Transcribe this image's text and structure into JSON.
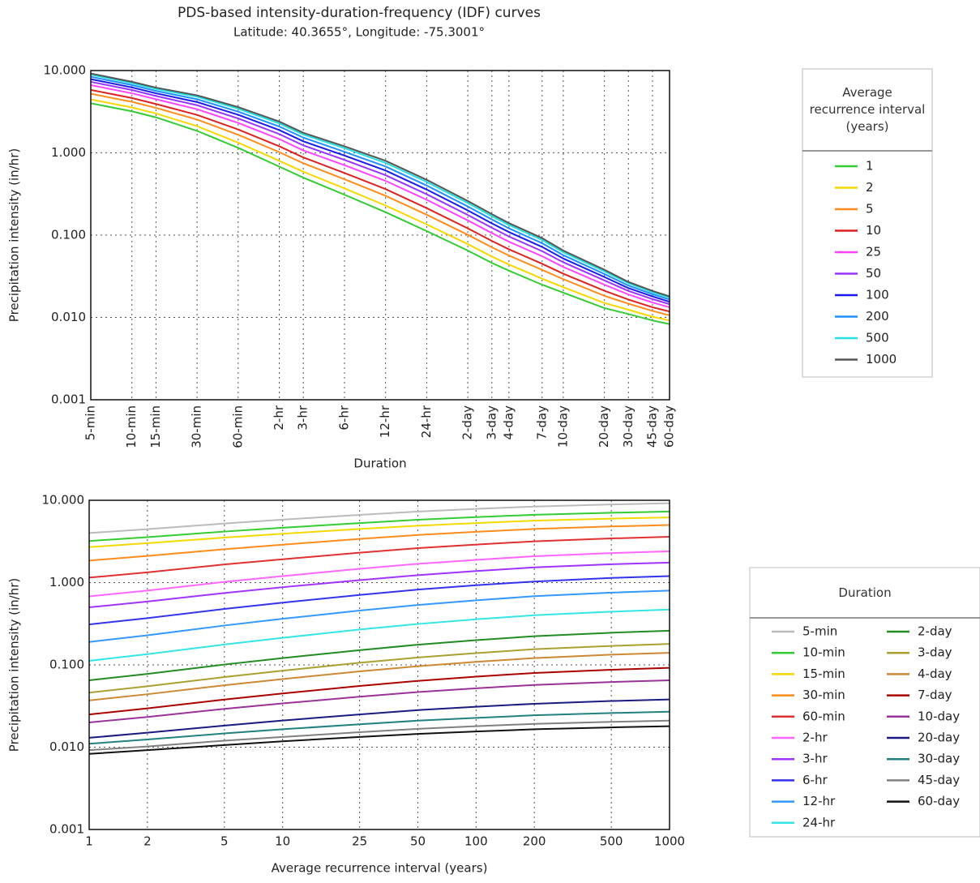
{
  "title": "PDS-based intensity-duration-frequency (IDF) curves",
  "subtitle": "Latitude: 40.3655°, Longitude: -75.3001°",
  "chart_data": [
    {
      "type": "line",
      "xscale": "log",
      "yscale": "log",
      "grid": true,
      "legend": "right",
      "legend_columns": 1,
      "xlabel": "Duration",
      "ylabel": "Precipitation intensity (in/hr)",
      "legend_title": "Average recurrence interval (years)",
      "x": [
        5,
        10,
        15,
        30,
        60,
        120,
        180,
        360,
        720,
        1440,
        2880,
        4320,
        5760,
        10080,
        14400,
        28800,
        43200,
        64800,
        86400
      ],
      "xlim": [
        5,
        86400
      ],
      "xticks": [
        {
          "value": 5,
          "label": "5-min"
        },
        {
          "value": 10,
          "label": "10-min"
        },
        {
          "value": 15,
          "label": "15-min"
        },
        {
          "value": 30,
          "label": "30-min"
        },
        {
          "value": 60,
          "label": "60-min"
        },
        {
          "value": 120,
          "label": "2-hr"
        },
        {
          "value": 180,
          "label": "3-hr"
        },
        {
          "value": 360,
          "label": "6-hr"
        },
        {
          "value": 720,
          "label": "12-hr"
        },
        {
          "value": 1440,
          "label": "24-hr"
        },
        {
          "value": 2880,
          "label": "2-day"
        },
        {
          "value": 4320,
          "label": "3-day"
        },
        {
          "value": 5760,
          "label": "4-day"
        },
        {
          "value": 10080,
          "label": "7-day"
        },
        {
          "value": 14400,
          "label": "10-day"
        },
        {
          "value": 28800,
          "label": "20-day"
        },
        {
          "value": 43200,
          "label": "30-day"
        },
        {
          "value": 64800,
          "label": "45-day"
        },
        {
          "value": 86400,
          "label": "60-day"
        }
      ],
      "ylim": [
        0.001,
        10
      ],
      "yticks": [
        {
          "value": 0.001,
          "label": "0.001"
        },
        {
          "value": 0.01,
          "label": "0.010"
        },
        {
          "value": 0.1,
          "label": "0.100"
        },
        {
          "value": 1,
          "label": "1.000"
        },
        {
          "value": 10,
          "label": "10.000"
        }
      ],
      "series": [
        {
          "name": "1",
          "color": "#33cc33",
          "values": [
            4.0,
            3.2,
            2.7,
            1.85,
            1.15,
            0.68,
            0.5,
            0.31,
            0.19,
            0.112,
            0.065,
            0.046,
            0.037,
            0.025,
            0.02,
            0.013,
            0.011,
            0.0092,
            0.0083
          ]
        },
        {
          "name": "2",
          "color": "#f5d800",
          "values": [
            4.46,
            3.56,
            3.01,
            2.11,
            1.33,
            0.8,
            0.589,
            0.37,
            0.229,
            0.135,
            0.0778,
            0.0549,
            0.044,
            0.0296,
            0.0233,
            0.015,
            0.0124,
            0.0102,
            0.0092
          ]
        },
        {
          "name": "5",
          "color": "#ff8c1a",
          "values": [
            5.22,
            4.17,
            3.52,
            2.54,
            1.66,
            1.02,
            0.747,
            0.478,
            0.301,
            0.177,
            0.101,
            0.0712,
            0.0566,
            0.0379,
            0.0292,
            0.0183,
            0.0147,
            0.012,
            0.0106
          ]
        },
        {
          "name": "10",
          "color": "#dd2222",
          "values": [
            5.82,
            4.64,
            3.92,
            2.89,
            1.92,
            1.2,
            0.879,
            0.57,
            0.363,
            0.213,
            0.121,
            0.085,
            0.0673,
            0.0449,
            0.034,
            0.0211,
            0.0165,
            0.0133,
            0.0118
          ]
        },
        {
          "name": "25",
          "color": "#ff44ff",
          "values": [
            6.65,
            5.29,
            4.48,
            3.39,
            2.31,
            1.47,
            1.07,
            0.708,
            0.457,
            0.269,
            0.151,
            0.106,
            0.0833,
            0.0554,
            0.0411,
            0.025,
            0.019,
            0.0152,
            0.0133
          ]
        },
        {
          "name": "50",
          "color": "#9933ff",
          "values": [
            7.29,
            5.8,
            4.91,
            3.79,
            2.62,
            1.69,
            1.23,
            0.822,
            0.535,
            0.314,
            0.176,
            0.123,
            0.0964,
            0.0639,
            0.0468,
            0.0282,
            0.021,
            0.0167,
            0.0145
          ]
        },
        {
          "name": "100",
          "color": "#1a1aee",
          "values": [
            7.86,
            6.24,
            5.29,
            4.14,
            2.9,
            1.89,
            1.38,
            0.928,
            0.609,
            0.358,
            0.2,
            0.139,
            0.109,
            0.0719,
            0.052,
            0.031,
            0.0227,
            0.018,
            0.0155
          ]
        },
        {
          "name": "200",
          "color": "#1e90ff",
          "values": [
            8.4,
            6.67,
            5.66,
            4.48,
            3.17,
            2.09,
            1.53,
            1.03,
            0.683,
            0.401,
            0.223,
            0.155,
            0.121,
            0.0798,
            0.0571,
            0.0337,
            0.0244,
            0.0192,
            0.0165
          ]
        },
        {
          "name": "500",
          "color": "#22e0e0",
          "values": [
            8.9,
            7.06,
            5.99,
            4.81,
            3.44,
            2.28,
            1.67,
            1.14,
            0.755,
            0.443,
            0.246,
            0.17,
            0.133,
            0.0873,
            0.062,
            0.0364,
            0.026,
            0.0203,
            0.0174
          ]
        },
        {
          "name": "1000",
          "color": "#555555",
          "values": [
            9.2,
            7.3,
            6.2,
            5.0,
            3.6,
            2.4,
            1.75,
            1.2,
            0.8,
            0.47,
            0.26,
            0.18,
            0.14,
            0.092,
            0.065,
            0.038,
            0.027,
            0.021,
            0.018
          ]
        }
      ]
    },
    {
      "type": "line",
      "xscale": "log",
      "yscale": "log",
      "grid": true,
      "legend": "right",
      "legend_columns": 2,
      "xlabel": "Average recurrence interval (years)",
      "ylabel": "Precipitation intensity (in/hr)",
      "legend_title": "Duration",
      "x": [
        1,
        2,
        5,
        10,
        25,
        50,
        100,
        200,
        500,
        1000
      ],
      "xlim": [
        1,
        1000
      ],
      "xticks": [
        1,
        2,
        5,
        10,
        25,
        50,
        100,
        200,
        500,
        1000
      ],
      "ylim": [
        0.001,
        10
      ],
      "yticks": [
        {
          "value": 0.001,
          "label": "0.001"
        },
        {
          "value": 0.01,
          "label": "0.010"
        },
        {
          "value": 0.1,
          "label": "0.100"
        },
        {
          "value": 1,
          "label": "1.000"
        },
        {
          "value": 10,
          "label": "10.000"
        }
      ],
      "series": [
        {
          "name": "5-min",
          "color": "#bbbbbb",
          "values": [
            4.0,
            4.46,
            5.22,
            5.82,
            6.65,
            7.29,
            7.86,
            8.4,
            8.9,
            9.2
          ]
        },
        {
          "name": "10-min",
          "color": "#33cc33",
          "values": [
            3.2,
            3.56,
            4.17,
            4.64,
            5.29,
            5.8,
            6.24,
            6.67,
            7.06,
            7.3
          ]
        },
        {
          "name": "15-min",
          "color": "#f5d800",
          "values": [
            2.7,
            3.01,
            3.52,
            3.92,
            4.48,
            4.91,
            5.29,
            5.66,
            5.99,
            6.2
          ]
        },
        {
          "name": "30-min",
          "color": "#ff8c1a",
          "values": [
            1.85,
            2.11,
            2.54,
            2.89,
            3.39,
            3.79,
            4.14,
            4.48,
            4.81,
            5.0
          ]
        },
        {
          "name": "60-min",
          "color": "#e03030",
          "values": [
            1.15,
            1.33,
            1.66,
            1.92,
            2.31,
            2.62,
            2.9,
            3.17,
            3.44,
            3.6
          ]
        },
        {
          "name": "2-hr",
          "color": "#ff66ff",
          "values": [
            0.68,
            0.8,
            1.02,
            1.2,
            1.47,
            1.69,
            1.89,
            2.09,
            2.28,
            2.4
          ]
        },
        {
          "name": "3-hr",
          "color": "#a033ff",
          "values": [
            0.5,
            0.589,
            0.747,
            0.879,
            1.07,
            1.23,
            1.38,
            1.53,
            1.67,
            1.75
          ]
        },
        {
          "name": "6-hr",
          "color": "#3333ee",
          "values": [
            0.31,
            0.37,
            0.478,
            0.57,
            0.708,
            0.822,
            0.928,
            1.03,
            1.14,
            1.2
          ]
        },
        {
          "name": "12-hr",
          "color": "#3399ff",
          "values": [
            0.19,
            0.229,
            0.301,
            0.363,
            0.457,
            0.535,
            0.609,
            0.683,
            0.755,
            0.8
          ]
        },
        {
          "name": "24-hr",
          "color": "#33e5e5",
          "values": [
            0.112,
            0.135,
            0.177,
            0.213,
            0.269,
            0.314,
            0.358,
            0.401,
            0.443,
            0.47
          ]
        },
        {
          "name": "2-day",
          "color": "#228b22",
          "values": [
            0.065,
            0.0778,
            0.101,
            0.121,
            0.151,
            0.176,
            0.2,
            0.223,
            0.246,
            0.26
          ]
        },
        {
          "name": "3-day",
          "color": "#aaa030",
          "values": [
            0.046,
            0.0549,
            0.0712,
            0.085,
            0.106,
            0.123,
            0.139,
            0.155,
            0.17,
            0.18
          ]
        },
        {
          "name": "4-day",
          "color": "#cc8833",
          "values": [
            0.037,
            0.044,
            0.0566,
            0.0673,
            0.0833,
            0.0964,
            0.109,
            0.121,
            0.133,
            0.14
          ]
        },
        {
          "name": "7-day",
          "color": "#aa0000",
          "values": [
            0.025,
            0.0296,
            0.0379,
            0.0449,
            0.0554,
            0.0639,
            0.0719,
            0.0798,
            0.0873,
            0.092
          ]
        },
        {
          "name": "10-day",
          "color": "#993399",
          "values": [
            0.02,
            0.0233,
            0.0292,
            0.034,
            0.0411,
            0.0468,
            0.052,
            0.0571,
            0.062,
            0.065
          ]
        },
        {
          "name": "20-day",
          "color": "#1a1a80",
          "values": [
            0.013,
            0.015,
            0.0183,
            0.0211,
            0.025,
            0.0282,
            0.031,
            0.0337,
            0.0364,
            0.038
          ]
        },
        {
          "name": "30-day",
          "color": "#228080",
          "values": [
            0.011,
            0.0124,
            0.0147,
            0.0165,
            0.019,
            0.021,
            0.0227,
            0.0244,
            0.026,
            0.027
          ]
        },
        {
          "name": "45-day",
          "color": "#808080",
          "values": [
            0.0092,
            0.0102,
            0.012,
            0.0133,
            0.0152,
            0.0167,
            0.018,
            0.0192,
            0.0203,
            0.021
          ]
        },
        {
          "name": "60-day",
          "color": "#111111",
          "values": [
            0.0083,
            0.0092,
            0.0106,
            0.0118,
            0.0133,
            0.0145,
            0.0155,
            0.0165,
            0.0174,
            0.018
          ]
        }
      ]
    }
  ]
}
